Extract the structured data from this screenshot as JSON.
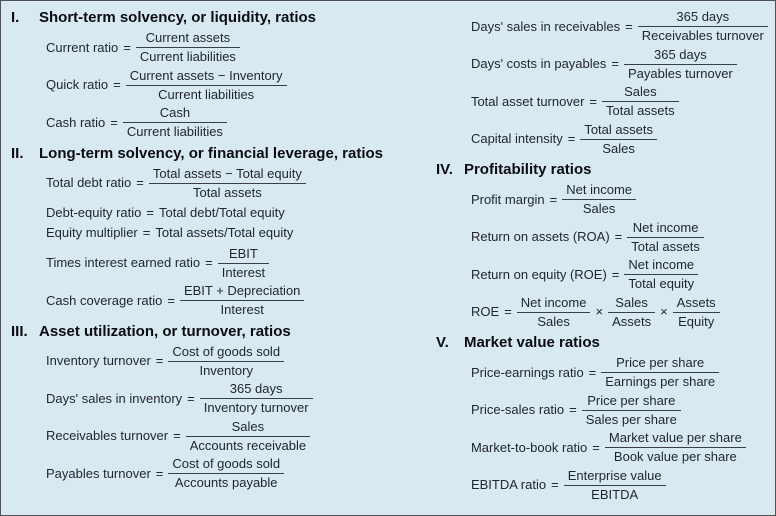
{
  "page": {
    "background_color": "#d9e9f2",
    "border_color": "#4f5355",
    "heading_color": "#0b0d10",
    "text_color": "#22272e"
  },
  "symbols": {
    "equals": "=",
    "multiply": "×"
  },
  "columns": [
    {
      "sections": [
        {
          "numeral": "I.",
          "title": "Short-term solvency, or liquidity, ratios",
          "formulas": [
            {
              "type": "fraction",
              "label": "Current ratio",
              "num": "Current assets",
              "den": "Current liabilities"
            },
            {
              "type": "fraction",
              "label": "Quick ratio",
              "num": "Current assets − Inventory",
              "den": "Current liabilities"
            },
            {
              "type": "fraction",
              "label": "Cash ratio",
              "num": "Cash",
              "den": "Current liabilities"
            }
          ]
        },
        {
          "numeral": "II.",
          "title": "Long-term solvency, or financial leverage, ratios",
          "formulas": [
            {
              "type": "fraction",
              "label": "Total debt ratio",
              "num": "Total assets − Total equity",
              "den": "Total assets"
            },
            {
              "type": "inline",
              "label": "Debt-equity ratio",
              "rhs": "Total debt/Total equity"
            },
            {
              "type": "inline",
              "label": "Equity multiplier",
              "rhs": "Total assets/Total equity"
            },
            {
              "type": "fraction",
              "label": "Times interest earned ratio",
              "num": "EBIT",
              "den": "Interest"
            },
            {
              "type": "fraction",
              "label": "Cash coverage ratio",
              "num": "EBIT + Depreciation",
              "den": "Interest"
            }
          ]
        },
        {
          "numeral": "III.",
          "title": "Asset utilization, or turnover, ratios",
          "formulas": [
            {
              "type": "fraction",
              "label": "Inventory turnover",
              "num": "Cost of goods sold",
              "den": "Inventory"
            },
            {
              "type": "fraction",
              "label": "Days' sales in inventory",
              "num": "365 days",
              "den": "Inventory turnover"
            },
            {
              "type": "fraction",
              "label": "Receivables turnover",
              "num": "Sales",
              "den": "Accounts receivable"
            },
            {
              "type": "fraction",
              "label": "Payables turnover",
              "num": "Cost of goods sold",
              "den": "Accounts payable"
            }
          ]
        }
      ]
    },
    {
      "sections": [
        {
          "numeral": "",
          "title": "",
          "formulas": [
            {
              "type": "fraction",
              "label": "Days' sales in receivables",
              "num": "365 days",
              "den": "Receivables turnover"
            },
            {
              "type": "fraction",
              "label": "Days' costs in payables",
              "num": "365 days",
              "den": "Payables turnover"
            },
            {
              "type": "fraction",
              "label": "Total asset turnover",
              "num": "Sales",
              "den": "Total assets"
            },
            {
              "type": "fraction",
              "label": "Capital intensity",
              "num": "Total assets",
              "den": "Sales"
            }
          ]
        },
        {
          "numeral": "IV.",
          "title": "Profitability ratios",
          "formulas": [
            {
              "type": "fraction",
              "label": "Profit margin",
              "num": "Net income",
              "den": "Sales"
            },
            {
              "type": "fraction",
              "label": "Return on assets (ROA)",
              "num": "Net income",
              "den": "Total assets"
            },
            {
              "type": "fraction",
              "label": "Return on equity (ROE)",
              "num": "Net income",
              "den": "Total equity"
            },
            {
              "type": "product",
              "label": "ROE",
              "fractions": [
                {
                  "num": "Net income",
                  "den": "Sales"
                },
                {
                  "num": "Sales",
                  "den": "Assets"
                },
                {
                  "num": "Assets",
                  "den": "Equity"
                }
              ]
            }
          ]
        },
        {
          "numeral": "V.",
          "title": "Market value ratios",
          "formulas": [
            {
              "type": "fraction",
              "label": "Price-earnings ratio",
              "num": "Price per share",
              "den": "Earnings per share"
            },
            {
              "type": "fraction",
              "label": "Price-sales ratio",
              "num": "Price per share",
              "den": "Sales per share"
            },
            {
              "type": "fraction",
              "label": "Market-to-book ratio",
              "num": "Market value per share",
              "den": "Book value per share"
            },
            {
              "type": "fraction",
              "label": "EBITDA ratio",
              "num": "Enterprise value",
              "den": "EBITDA"
            }
          ]
        }
      ]
    }
  ]
}
